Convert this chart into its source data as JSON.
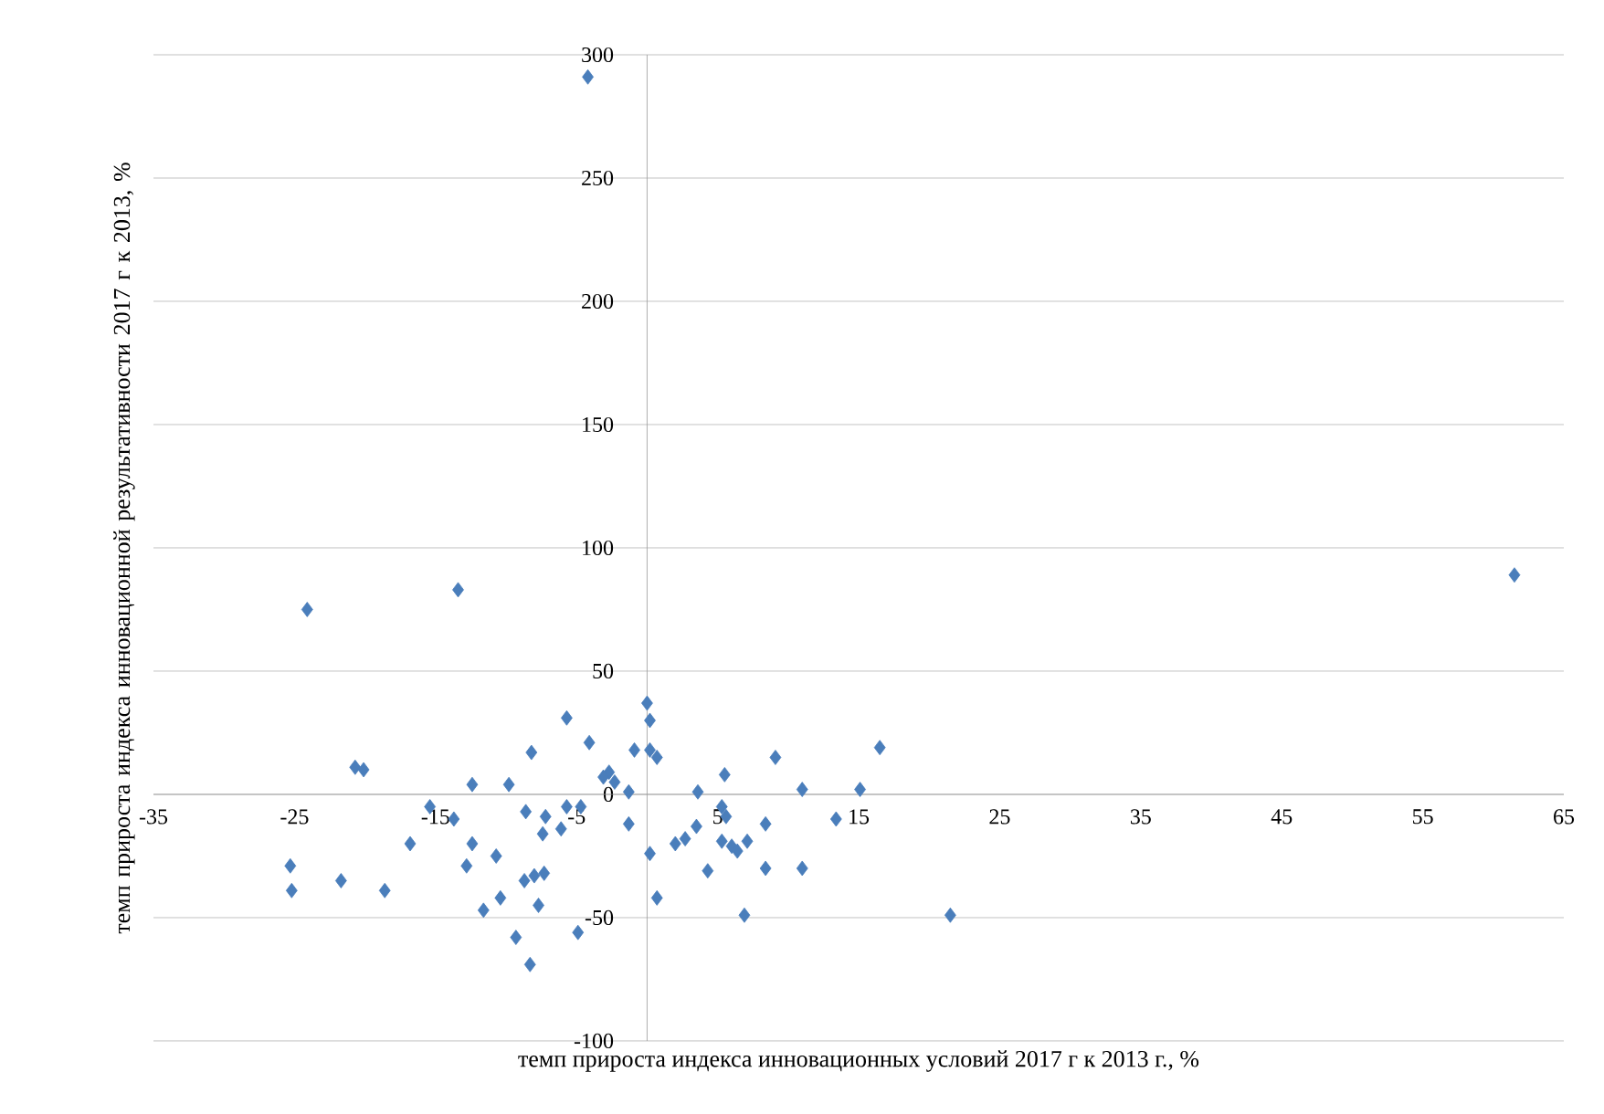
{
  "chart_data": {
    "type": "scatter",
    "xlabel": "темп прироста индекса инновационных условий 2017 г к 2013 г., %",
    "ylabel": "темп прироста индекса инновационной результативности 2017 г  к  2013, %",
    "xlim": [
      -35,
      65
    ],
    "ylim": [
      -100,
      300
    ],
    "xticks": [
      -35,
      -25,
      -15,
      -5,
      5,
      15,
      25,
      35,
      45,
      55,
      65
    ],
    "yticks": [
      -100,
      -50,
      0,
      50,
      100,
      150,
      200,
      250,
      300
    ],
    "grid": "y",
    "marker": "diamond",
    "series": [
      {
        "color": "#4a7ebb",
        "x": [
          -4.2,
          61.5,
          -24.1,
          -13.4,
          0,
          0.2,
          -5.7,
          -4.1,
          -8.2,
          -0.9,
          0.2,
          0.7,
          -2.7,
          -3.1,
          -2.3,
          -1.3,
          -20.7,
          -20.1,
          -12.4,
          -9.8,
          5.5,
          9.1,
          16.5,
          15.1,
          11,
          3.6,
          -15.4,
          -13.7,
          -8.6,
          -7.2,
          -7.4,
          -6.1,
          -5.7,
          -4.7,
          -1.3,
          5.3,
          5.6,
          3.5,
          2.7,
          2,
          8.4,
          13.4,
          5.3,
          6,
          7.1,
          -16.8,
          -12.4,
          -12.8,
          -10.7,
          0.2,
          4.3,
          8.4,
          11,
          6.4,
          -25.3,
          -25.2,
          -21.7,
          -18.6,
          -10.4,
          -11.6,
          -8.7,
          -8,
          -7.3,
          -7.7,
          0.7,
          -9.3,
          -4.9,
          -8.3,
          6.9,
          21.5
        ],
        "values": [
          291,
          89,
          75,
          83,
          37,
          30,
          31,
          21,
          17,
          18,
          18,
          15,
          9,
          7,
          5,
          1,
          11,
          10,
          4,
          4,
          8,
          15,
          19,
          2,
          2,
          1,
          -5,
          -10,
          -7,
          -9,
          -16,
          -14,
          -5,
          -5,
          -12,
          -5,
          -9,
          -13,
          -18,
          -20,
          -12,
          -10,
          -19,
          -21,
          -19,
          -20,
          -20,
          -29,
          -25,
          -24,
          -31,
          -30,
          -30,
          -23,
          -29,
          -39,
          -35,
          -39,
          -42,
          -47,
          -35,
          -33,
          -32,
          -45,
          -42,
          -58,
          -56,
          -69,
          -49,
          -49
        ]
      }
    ]
  }
}
